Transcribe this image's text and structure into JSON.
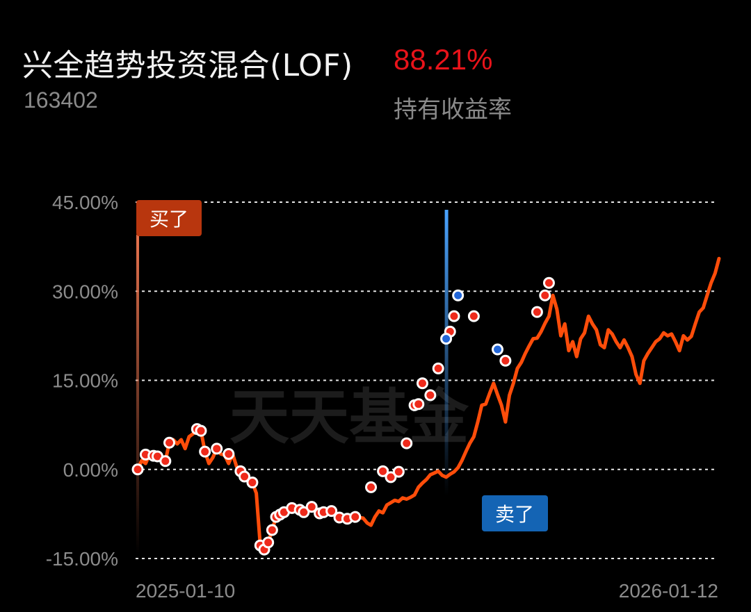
{
  "fund": {
    "name": "兴全趋势投资混合(LOF)",
    "code": "163402",
    "return_value": "88.21%",
    "return_label": "持有收益率"
  },
  "watermark": "天天基金",
  "colors": {
    "background": "#000000",
    "line": "#ff4d0a",
    "buy_marker": "#ee2a1b",
    "sell_marker": "#2266d8",
    "buy_tag": "#b8360e",
    "sell_tag": "#1464b4",
    "positive": "#e8131a"
  },
  "tags": {
    "buy": "买了",
    "sell": "卖了"
  },
  "chart_data": {
    "type": "line",
    "y_ticks": [
      "45.00%",
      "30.00%",
      "15.00%",
      "0.00%",
      "-15.00%"
    ],
    "y_tick_values": [
      45,
      30,
      15,
      0,
      -15
    ],
    "ylim": [
      -15,
      45
    ],
    "x_labels": [
      "2025-01-10",
      "2026-01-12"
    ],
    "grid": true,
    "buy_date": "2025-01-10",
    "series": [
      {
        "values": [
          0,
          1.5,
          1,
          2.5,
          2.3,
          2.2,
          2.4,
          1.4,
          4.5,
          5,
          4.3,
          5,
          3.5,
          5.5,
          6,
          6.8,
          6.5,
          3,
          1,
          2,
          3.5,
          2.6,
          2.4,
          1,
          2.6,
          0.5,
          -0.3,
          -1.2,
          -1.5,
          -2.2,
          -4,
          -12.8,
          -13.5,
          -12.3,
          -10.2,
          -8,
          -7.6,
          -7.2,
          -6.8,
          -6.5,
          -6.2,
          -6.8,
          -7.2,
          -6.6,
          -6.3,
          -6.8,
          -7.4,
          -7.2,
          -7,
          -6.5,
          -7.3,
          -7.8,
          -8.1,
          -8.3,
          -7.9,
          -8,
          -8.1,
          -8.2,
          -9,
          -9.4,
          -8,
          -7,
          -7.3,
          -6,
          -5.6,
          -5.2,
          -5.4,
          -4.8,
          -5,
          -4.7,
          -4.3,
          -3,
          -2.3,
          -1.7,
          -0.9,
          -0.6,
          -0.3,
          -1,
          -1.3,
          -0.8,
          -0.4,
          0.3,
          1.5,
          3,
          4.4,
          5.5,
          8,
          10.8,
          11,
          12.8,
          14.5,
          12.6,
          10.8,
          8,
          12.5,
          14.5,
          17,
          18,
          19.5,
          20.8,
          22,
          22.1,
          23.2,
          24.6,
          25.8,
          29.3,
          27,
          22.5,
          24.5,
          20,
          21.5,
          19,
          22,
          23,
          25.8,
          24.5,
          23.5,
          21,
          20.5,
          23.5,
          22.8,
          21.5,
          20.5,
          21.8,
          20.5,
          19,
          16,
          14.5,
          18.3,
          19.5,
          20.5,
          21.5,
          22,
          23,
          22.5,
          22.8,
          21.5,
          20,
          22.5,
          21.8,
          22.4,
          24.5,
          26.5,
          27.2,
          29.3,
          31.4,
          33,
          35.5
        ]
      }
    ],
    "buy_points": [
      [
        0,
        0
      ],
      [
        2,
        2.5
      ],
      [
        4,
        2.3
      ],
      [
        5,
        2.2
      ],
      [
        7,
        1.4
      ],
      [
        8,
        4.5
      ],
      [
        15,
        6.8
      ],
      [
        16,
        6.5
      ],
      [
        17,
        3
      ],
      [
        20,
        3.5
      ],
      [
        23,
        2.6
      ],
      [
        26,
        -0.3
      ],
      [
        27,
        -1.2
      ],
      [
        29,
        -2.2
      ],
      [
        31,
        -12.8
      ],
      [
        32,
        -13.5
      ],
      [
        33,
        -12.3
      ],
      [
        34,
        -10.2
      ],
      [
        35,
        -8
      ],
      [
        36,
        -7.6
      ],
      [
        37,
        -7.2
      ],
      [
        39,
        -6.5
      ],
      [
        41,
        -6.8
      ],
      [
        42,
        -7.2
      ],
      [
        44,
        -6.3
      ],
      [
        46,
        -7.4
      ],
      [
        47,
        -7.2
      ],
      [
        49,
        -7
      ],
      [
        51,
        -8.1
      ],
      [
        53,
        -8.3
      ],
      [
        55,
        -8
      ],
      [
        59,
        -3
      ],
      [
        62,
        -0.3
      ],
      [
        64,
        -1.3
      ],
      [
        66,
        -0.4
      ],
      [
        68,
        4.4
      ],
      [
        70,
        10.8
      ],
      [
        71,
        11
      ],
      [
        72,
        14.5
      ],
      [
        74,
        12.5
      ],
      [
        76,
        17
      ],
      [
        79,
        23.2
      ],
      [
        80,
        25.8
      ],
      [
        85,
        25.8
      ],
      [
        93,
        18.3
      ],
      [
        101,
        26.5
      ],
      [
        103,
        29.3
      ],
      [
        104,
        31.4
      ]
    ],
    "sell_points": [
      [
        78,
        22
      ],
      [
        81,
        29.3
      ],
      [
        91,
        20.2
      ]
    ],
    "sell_index": 78
  }
}
